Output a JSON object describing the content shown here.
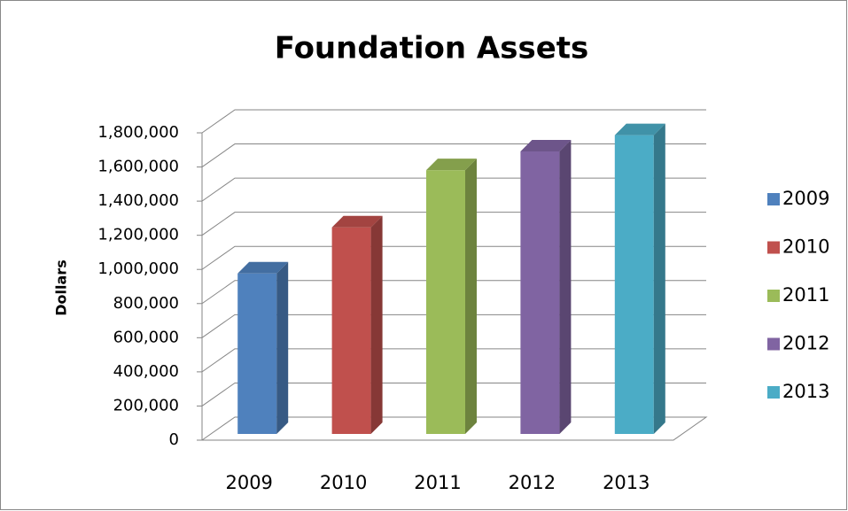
{
  "chart_data": {
    "type": "bar3d",
    "title": "Foundation Assets",
    "y_label": "Dollars",
    "categories": [
      "2009",
      "2010",
      "2011",
      "2012",
      "2013"
    ],
    "values": [
      940000,
      1210000,
      1545000,
      1655000,
      1750000
    ],
    "colors": [
      "#4f81bd",
      "#c0504d",
      "#9bbb59",
      "#8064a2",
      "#4bacc6"
    ],
    "ylim": [
      0,
      1800000
    ],
    "yticks": [
      0,
      {
        "value": 200000,
        "label": "200,000"
      },
      {
        "value": 400000,
        "label": "400,000"
      },
      {
        "value": 600000,
        "label": "600,000"
      },
      {
        "value": 800000,
        "label": "800,000"
      },
      {
        "value": 1000000,
        "label": "1,000,000"
      },
      {
        "value": 1200000,
        "label": "1,200,000"
      },
      {
        "value": 1400000,
        "label": "1,400,000"
      },
      {
        "value": 1600000,
        "label": "1,600,000"
      },
      {
        "value": 1800000,
        "label": "1,800,000"
      }
    ],
    "grid": true,
    "legend": "right"
  }
}
